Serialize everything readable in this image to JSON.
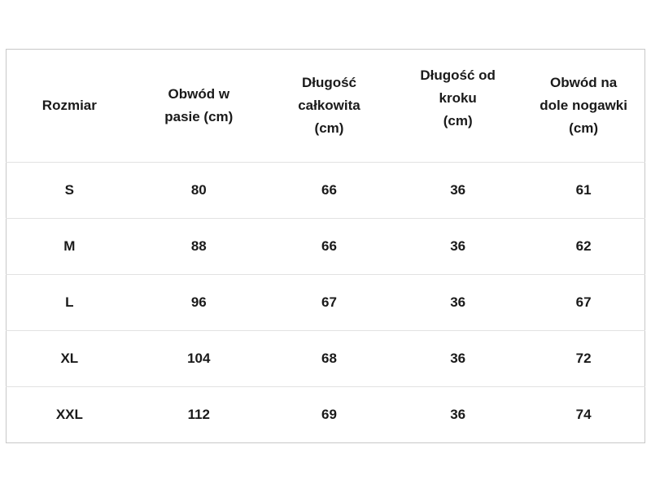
{
  "table": {
    "headers": [
      "Rozmiar",
      "Obwód w\npasie (cm)",
      "Długość\ncałkowita\n(cm)",
      "Długość od\nkroku\n(cm)",
      "Obwód na\ndole nogawki\n(cm)"
    ],
    "rows": [
      [
        "S",
        "80",
        "66",
        "36",
        "61"
      ],
      [
        "M",
        "88",
        "66",
        "36",
        "62"
      ],
      [
        "L",
        "96",
        "67",
        "36",
        "67"
      ],
      [
        "XL",
        "104",
        "68",
        "36",
        "72"
      ],
      [
        "XXL",
        "112",
        "69",
        "36",
        "74"
      ]
    ]
  }
}
